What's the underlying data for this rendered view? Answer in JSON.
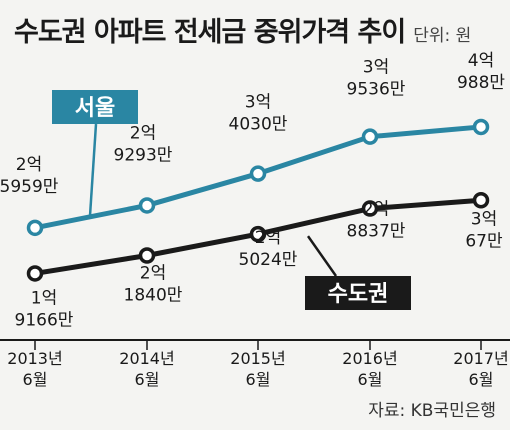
{
  "header": {
    "title": "수도권 아파트 전세금 중위가격 추이",
    "unit": "단위: 원"
  },
  "source": "자료: KB국민은행",
  "colors": {
    "seoul": "#2a86a3",
    "metro": "#1a1a1a",
    "background": "#f4f4f2"
  },
  "chart_data": {
    "type": "line",
    "categories": [
      "2013년 6월",
      "2014년 6월",
      "2015년 6월",
      "2016년 6월",
      "2017년 6월"
    ],
    "tick_lines": [
      [
        "2013년",
        "6월"
      ],
      [
        "2014년",
        "6월"
      ],
      [
        "2015년",
        "6월"
      ],
      [
        "2016년",
        "6월"
      ],
      [
        "2017년",
        "6월"
      ]
    ],
    "series": [
      {
        "name": "서울",
        "color": "#2a86a3",
        "values": [
          259590000,
          292930000,
          340300000,
          395360000,
          409880000
        ],
        "labels": [
          [
            "2억",
            "5959만"
          ],
          [
            "2억",
            "9293만"
          ],
          [
            "3억",
            "4030만"
          ],
          [
            "3억",
            "9536만"
          ],
          [
            "4억",
            "988만"
          ]
        ]
      },
      {
        "name": "수도권",
        "color": "#1a1a1a",
        "values": [
          191660000,
          218400000,
          250240000,
          288370000,
          300670000
        ],
        "labels": [
          [
            "1억",
            "9166만"
          ],
          [
            "2억",
            "1840만"
          ],
          [
            "2억",
            "5024만"
          ],
          [
            "2억",
            "8837만"
          ],
          [
            "3억",
            "67만"
          ]
        ]
      }
    ],
    "ylim": [
      100000000,
      450000000
    ],
    "grid": false
  }
}
